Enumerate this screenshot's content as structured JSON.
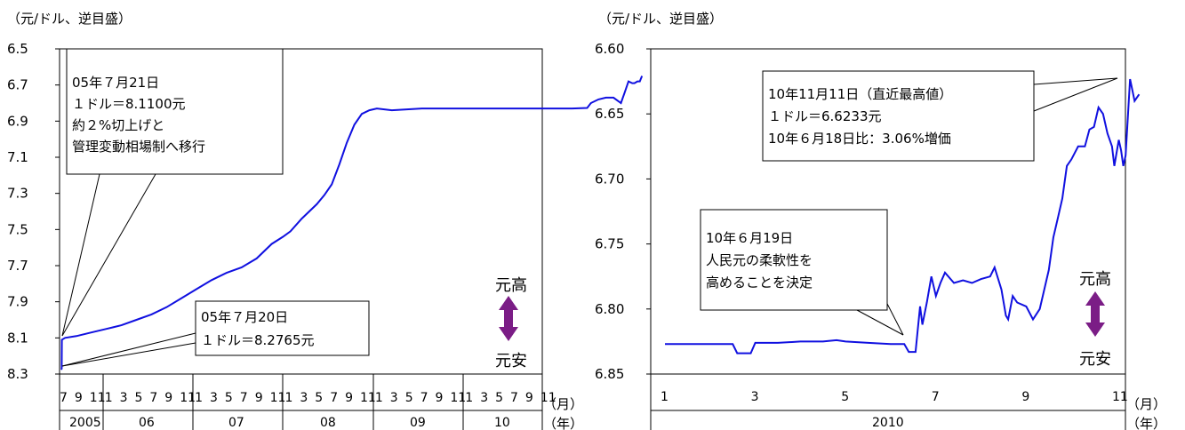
{
  "chart_data": [
    {
      "type": "line",
      "ylabel": "（元/ドル、逆目盛）",
      "y_inverted": true,
      "ylim": [
        6.5,
        8.3
      ],
      "yticks": [
        "6.5",
        "6.7",
        "6.9",
        "7.1",
        "7.3",
        "7.5",
        "7.7",
        "7.9",
        "8.1",
        "8.3"
      ],
      "x_month_ticks": [
        "7",
        "9",
        "11",
        "1",
        "3",
        "5",
        "7",
        "9",
        "11",
        "1",
        "3",
        "5",
        "7",
        "9",
        "11",
        "1",
        "3",
        "5",
        "7",
        "9",
        "11",
        "1",
        "3",
        "5",
        "7",
        "9",
        "11",
        "1",
        "3",
        "5",
        "7",
        "9",
        "11"
      ],
      "x_years": [
        "2005",
        "06",
        "07",
        "08",
        "09",
        "10"
      ],
      "x_unit_month": "（月）",
      "x_unit_year": "（年）",
      "series": [
        {
          "color": "#1010e0",
          "points": [
            [
              0.0,
              8.2765
            ],
            [
              0.05,
              8.27
            ],
            [
              0.07,
              8.11
            ],
            [
              0.5,
              8.1
            ],
            [
              2.0,
              8.09
            ],
            [
              4.0,
              8.07
            ],
            [
              6.0,
              8.05
            ],
            [
              8.0,
              8.03
            ],
            [
              10.0,
              8.0
            ],
            [
              12.0,
              7.97
            ],
            [
              14.0,
              7.93
            ],
            [
              16.0,
              7.88
            ],
            [
              18.0,
              7.83
            ],
            [
              20.0,
              7.78
            ],
            [
              22.0,
              7.74
            ],
            [
              24.0,
              7.71
            ],
            [
              26.0,
              7.66
            ],
            [
              28.0,
              7.58
            ],
            [
              29.5,
              7.54
            ],
            [
              30.5,
              7.51
            ],
            [
              32.0,
              7.44
            ],
            [
              34.0,
              7.36
            ],
            [
              35.0,
              7.31
            ],
            [
              36.0,
              7.25
            ],
            [
              37.0,
              7.14
            ],
            [
              38.0,
              7.02
            ],
            [
              39.0,
              6.92
            ],
            [
              40.0,
              6.86
            ],
            [
              41.0,
              6.84
            ],
            [
              42.0,
              6.83
            ],
            [
              44.0,
              6.84
            ],
            [
              48.0,
              6.83
            ],
            [
              52.0,
              6.83
            ],
            [
              56.0,
              6.83
            ],
            [
              60.0,
              6.83
            ],
            [
              64.0,
              6.83
            ],
            [
              66.0,
              6.83
            ],
            [
              68.0,
              6.83
            ],
            [
              70.0,
              6.827
            ],
            [
              70.5,
              6.8
            ],
            [
              71.5,
              6.78
            ],
            [
              72.5,
              6.77
            ],
            [
              73.5,
              6.77
            ],
            [
              74.5,
              6.8
            ],
            [
              75.0,
              6.74
            ],
            [
              75.5,
              6.68
            ],
            [
              76.0,
              6.69
            ],
            [
              76.3,
              6.69
            ],
            [
              76.7,
              6.68
            ],
            [
              77.0,
              6.68
            ],
            [
              77.3,
              6.65
            ]
          ]
        }
      ],
      "annotations": [
        {
          "lines": [
            "05年７月21日",
            "１ドル＝8.1100元",
            "約２%切上げと",
            "管理変動相場制へ移行"
          ]
        },
        {
          "lines": [
            "05年７月20日",
            "１ドル＝8.2765元"
          ]
        }
      ],
      "arrow_labels": {
        "up": "元高",
        "down": "元安"
      },
      "arrow_color": "#7b1d86"
    },
    {
      "type": "line",
      "ylabel": "（元/ドル、逆目盛）",
      "y_inverted": true,
      "ylim": [
        6.6,
        6.85
      ],
      "yticks": [
        "6.60",
        "6.65",
        "6.70",
        "6.75",
        "6.80",
        "6.85"
      ],
      "x_month_ticks": [
        "1",
        "3",
        "5",
        "7",
        "9",
        "11"
      ],
      "x_years": [
        "2010"
      ],
      "x_unit_month": "（月）",
      "x_unit_year": "（年）",
      "series": [
        {
          "color": "#1010e0",
          "points": [
            [
              1.0,
              6.827
            ],
            [
              1.4,
              6.827
            ],
            [
              1.8,
              6.827
            ],
            [
              2.2,
              6.827
            ],
            [
              2.5,
              6.827
            ],
            [
              2.6,
              6.834
            ],
            [
              2.9,
              6.834
            ],
            [
              3.0,
              6.826
            ],
            [
              3.5,
              6.826
            ],
            [
              4.0,
              6.825
            ],
            [
              4.5,
              6.825
            ],
            [
              4.8,
              6.824
            ],
            [
              5.0,
              6.825
            ],
            [
              5.5,
              6.826
            ],
            [
              6.0,
              6.827
            ],
            [
              6.3,
              6.827
            ],
            [
              6.4,
              6.833
            ],
            [
              6.55,
              6.833
            ],
            [
              6.6,
              6.815
            ],
            [
              6.65,
              6.798
            ],
            [
              6.7,
              6.812
            ],
            [
              6.8,
              6.795
            ],
            [
              6.9,
              6.775
            ],
            [
              7.0,
              6.79
            ],
            [
              7.1,
              6.78
            ],
            [
              7.2,
              6.772
            ],
            [
              7.4,
              6.78
            ],
            [
              7.6,
              6.778
            ],
            [
              7.8,
              6.78
            ],
            [
              8.0,
              6.777
            ],
            [
              8.2,
              6.775
            ],
            [
              8.3,
              6.768
            ],
            [
              8.45,
              6.785
            ],
            [
              8.55,
              6.805
            ],
            [
              8.6,
              6.808
            ],
            [
              8.7,
              6.79
            ],
            [
              8.8,
              6.795
            ],
            [
              9.0,
              6.798
            ],
            [
              9.15,
              6.808
            ],
            [
              9.3,
              6.8
            ],
            [
              9.5,
              6.77
            ],
            [
              9.6,
              6.745
            ],
            [
              9.7,
              6.73
            ],
            [
              9.8,
              6.715
            ],
            [
              9.9,
              6.69
            ],
            [
              10.0,
              6.685
            ],
            [
              10.15,
              6.675
            ],
            [
              10.3,
              6.675
            ],
            [
              10.4,
              6.662
            ],
            [
              10.5,
              6.66
            ],
            [
              10.6,
              6.645
            ],
            [
              10.7,
              6.65
            ],
            [
              10.8,
              6.665
            ],
            [
              10.9,
              6.675
            ],
            [
              10.95,
              6.69
            ],
            [
              11.0,
              6.68
            ],
            [
              11.05,
              6.67
            ],
            [
              11.1,
              6.678
            ],
            [
              11.15,
              6.69
            ],
            [
              11.2,
              6.682
            ],
            [
              11.3,
              6.6233
            ],
            [
              11.4,
              6.64
            ],
            [
              11.5,
              6.635
            ]
          ]
        }
      ],
      "annotations": [
        {
          "lines": [
            "10年11月11日（直近最高値）",
            "１ドル＝6.6233元",
            "10年６月18日比：3.06%増価"
          ]
        },
        {
          "lines": [
            "10年６月19日",
            "人民元の柔軟性を",
            "高めることを決定"
          ]
        }
      ],
      "arrow_labels": {
        "up": "元高",
        "down": "元安"
      },
      "arrow_color": "#7b1d86"
    }
  ]
}
